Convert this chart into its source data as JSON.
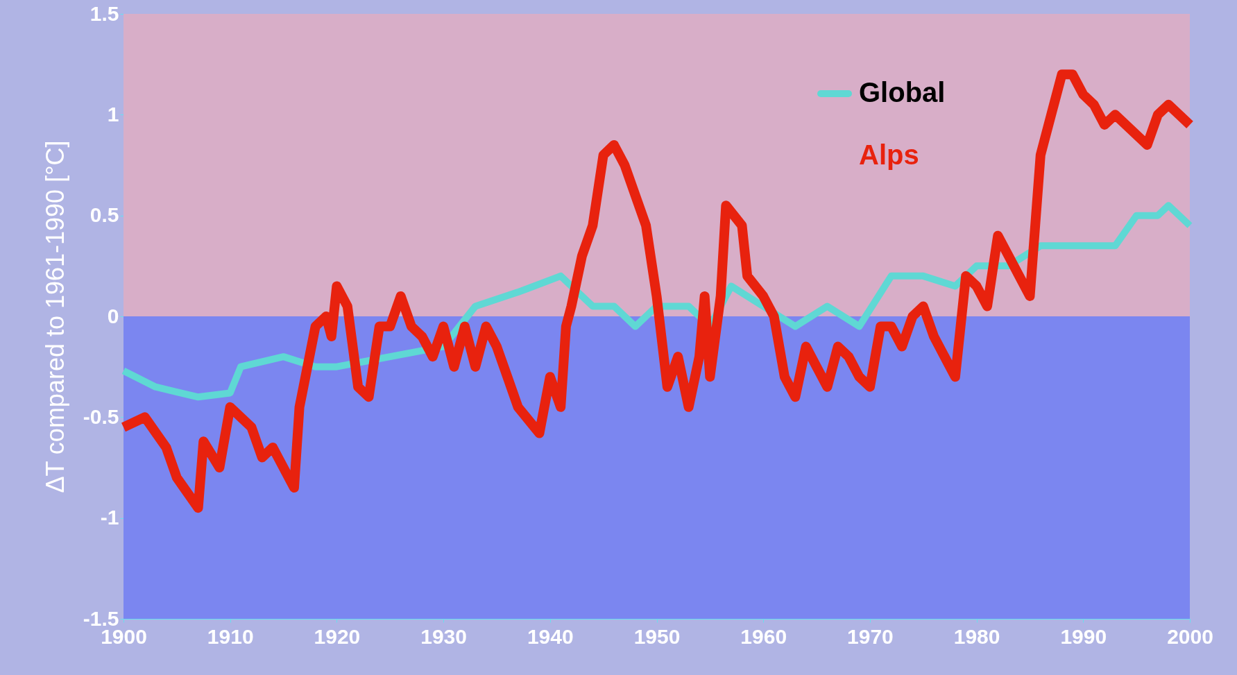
{
  "chart_data": {
    "type": "line",
    "ylabel": "ΔT compared to 1961-1990 [°C]",
    "xlim": [
      1900,
      2000
    ],
    "xticks": [
      1900,
      1910,
      1920,
      1930,
      1940,
      1950,
      1960,
      1970,
      1980,
      1990,
      2000
    ],
    "ylim": [
      -1.5,
      1.5
    ],
    "yticks": [
      -1.5,
      -1,
      -0.5,
      0,
      0.5,
      1,
      1.5
    ],
    "grid": false,
    "legend": "top right",
    "marker": "none",
    "line_style": "solid",
    "bands": [
      {
        "axis": "y",
        "from": 0,
        "to": 1.5,
        "color": "#d8aec8"
      },
      {
        "axis": "y",
        "from": -1.5,
        "to": 0,
        "color": "#7b86f0"
      }
    ],
    "series": [
      {
        "name": "Global",
        "color": "#5fd8d4",
        "x": [
          1900,
          1903,
          1907,
          1910,
          1911,
          1915,
          1918,
          1920,
          1925,
          1930,
          1933,
          1937,
          1941,
          1944,
          1946,
          1948,
          1950,
          1953,
          1955,
          1957,
          1960,
          1963,
          1966,
          1969,
          1972,
          1975,
          1978,
          1980,
          1983,
          1986,
          1990,
          1993,
          1995,
          1997,
          1998,
          2000
        ],
        "values": [
          -0.27,
          -0.35,
          -0.4,
          -0.38,
          -0.25,
          -0.2,
          -0.25,
          -0.25,
          -0.2,
          -0.15,
          0.05,
          0.12,
          0.2,
          0.05,
          0.05,
          -0.05,
          0.05,
          0.05,
          -0.05,
          0.15,
          0.05,
          -0.05,
          0.05,
          -0.05,
          0.2,
          0.2,
          0.15,
          0.25,
          0.25,
          0.35,
          0.35,
          0.35,
          0.5,
          0.5,
          0.55,
          0.45
        ]
      },
      {
        "name": "Alps",
        "color": "#e8220e",
        "x": [
          1900,
          1902,
          1904,
          1905,
          1907,
          1907.5,
          1909,
          1910,
          1912,
          1913,
          1914,
          1916,
          1916.5,
          1918,
          1919,
          1919.5,
          1920,
          1921,
          1922,
          1923,
          1924,
          1925,
          1926,
          1927,
          1928,
          1929,
          1930,
          1931,
          1932,
          1933,
          1934,
          1935,
          1936,
          1937,
          1939,
          1940,
          1941,
          1941.5,
          1942,
          1943,
          1944,
          1945,
          1946,
          1947,
          1948,
          1949,
          1950,
          1951,
          1952,
          1953,
          1954,
          1954.5,
          1955,
          1956,
          1956.5,
          1958,
          1958.5,
          1960,
          1961,
          1962,
          1963,
          1964,
          1965,
          1966,
          1967,
          1968,
          1969,
          1970,
          1971,
          1972,
          1973,
          1974,
          1975,
          1976,
          1977,
          1978,
          1979,
          1980,
          1981,
          1982,
          1983,
          1984,
          1985,
          1986,
          1987,
          1988,
          1989,
          1990,
          1991,
          1992,
          1993,
          1994,
          1995,
          1996,
          1997,
          1998,
          1999,
          2000
        ],
        "values": [
          -0.55,
          -0.5,
          -0.65,
          -0.8,
          -0.95,
          -0.62,
          -0.75,
          -0.45,
          -0.55,
          -0.7,
          -0.65,
          -0.85,
          -0.45,
          -0.05,
          0,
          -0.1,
          0.15,
          0.05,
          -0.35,
          -0.4,
          -0.05,
          -0.05,
          0.1,
          -0.05,
          -0.1,
          -0.2,
          -0.05,
          -0.25,
          -0.05,
          -0.25,
          -0.05,
          -0.15,
          -0.3,
          -0.45,
          -0.58,
          -0.3,
          -0.45,
          -0.05,
          0.05,
          0.3,
          0.45,
          0.8,
          0.85,
          0.75,
          0.6,
          0.45,
          0.1,
          -0.35,
          -0.2,
          -0.45,
          -0.2,
          0.1,
          -0.3,
          0.1,
          0.55,
          0.45,
          0.2,
          0.1,
          0,
          -0.3,
          -0.4,
          -0.15,
          -0.25,
          -0.35,
          -0.15,
          -0.2,
          -0.3,
          -0.35,
          -0.05,
          -0.05,
          -0.15,
          0,
          0.05,
          -0.1,
          -0.2,
          -0.3,
          0.2,
          0.15,
          0.05,
          0.4,
          0.3,
          0.2,
          0.1,
          0.8,
          1.0,
          1.2,
          1.2,
          1.1,
          1.05,
          0.95,
          1.0,
          0.95,
          0.9,
          0.85,
          1.0,
          1.05,
          1.0,
          0.95
        ]
      }
    ]
  }
}
